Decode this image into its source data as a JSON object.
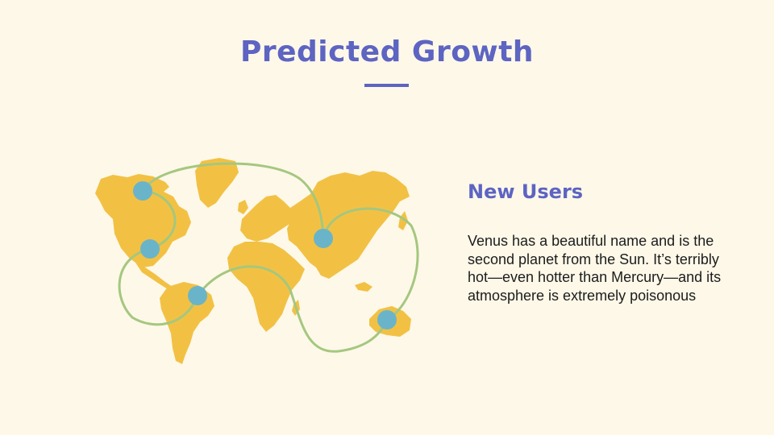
{
  "slide": {
    "title": "Predicted Growth",
    "subheading": "New Users",
    "body": "Venus has a beautiful name and is the second planet from the Sun. It’s terribly hot—even hotter than Mercury—and its atmosphere is extremely poisonous"
  },
  "colors": {
    "background": "#fdf8e8",
    "accent": "#5d64c2",
    "land": "#f2c144",
    "route": "#a5c77f",
    "marker": "#6ab4c9"
  }
}
